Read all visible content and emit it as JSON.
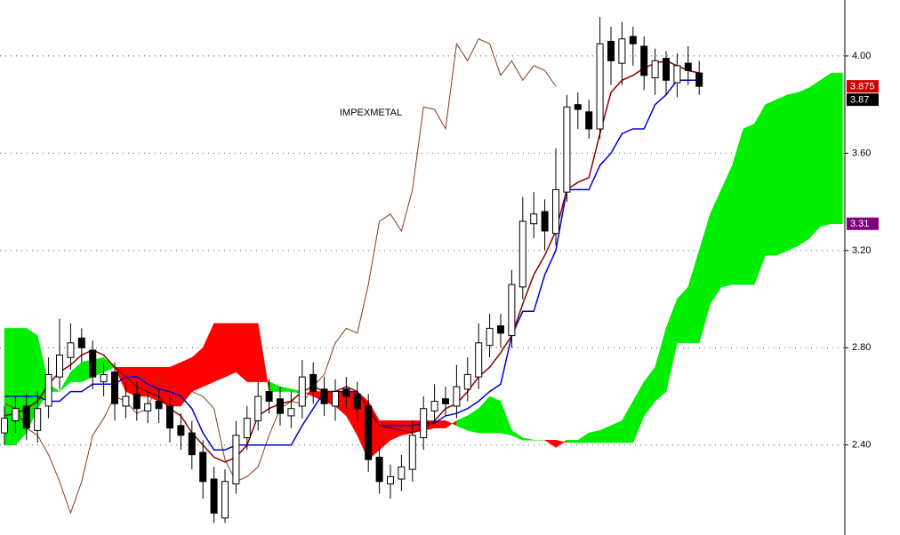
{
  "chart_data": {
    "type": "ichimoku",
    "title": "IMPEXMETAL",
    "ylim": [
      2.03,
      4.23
    ],
    "yticks": [
      {
        "value": 2.4,
        "label": "2.40"
      },
      {
        "value": 2.8,
        "label": "2.80"
      },
      {
        "value": 3.2,
        "label": "3.20"
      },
      {
        "value": 3.6,
        "label": "3.60"
      },
      {
        "value": 4.0,
        "label": "4.00"
      }
    ],
    "grid": true,
    "candles": {
      "open": [
        2.45,
        2.5,
        2.56,
        2.46,
        2.56,
        2.68,
        2.76,
        2.84,
        2.79,
        2.66,
        2.7,
        2.56,
        2.61,
        2.54,
        2.58,
        2.56,
        2.48,
        2.45,
        2.37,
        2.26,
        2.1,
        2.24,
        2.43,
        2.5,
        2.62,
        2.59,
        2.52,
        2.56,
        2.69,
        2.63,
        2.56,
        2.63,
        2.61,
        2.56,
        2.35,
        2.24,
        2.26,
        2.3,
        2.43,
        2.54,
        2.59,
        2.56,
        2.63,
        2.68,
        2.81,
        2.89,
        2.85,
        3.05,
        3.31,
        3.36,
        3.27,
        3.44,
        3.8,
        3.77,
        3.7,
        4.06,
        3.97,
        4.08,
        4.04,
        3.91,
        3.99,
        3.89,
        3.97,
        3.93
      ],
      "high": [
        2.56,
        2.6,
        2.61,
        2.62,
        2.76,
        2.92,
        2.9,
        2.88,
        2.83,
        2.74,
        2.74,
        2.66,
        2.66,
        2.62,
        2.63,
        2.6,
        2.53,
        2.5,
        2.42,
        2.31,
        2.3,
        2.5,
        2.56,
        2.66,
        2.67,
        2.64,
        2.62,
        2.75,
        2.74,
        2.68,
        2.67,
        2.68,
        2.66,
        2.61,
        2.4,
        2.32,
        2.36,
        2.5,
        2.6,
        2.65,
        2.64,
        2.73,
        2.76,
        2.9,
        2.94,
        2.94,
        3.12,
        3.42,
        3.44,
        3.41,
        3.62,
        3.84,
        3.85,
        3.82,
        4.16,
        4.12,
        4.14,
        4.12,
        4.08,
        4.03,
        4.02,
        4.01,
        4.04,
        3.98
      ],
      "low": [
        2.4,
        2.45,
        2.42,
        2.41,
        2.51,
        2.63,
        2.71,
        2.74,
        2.63,
        2.6,
        2.5,
        2.51,
        2.5,
        2.49,
        2.49,
        2.41,
        2.38,
        2.3,
        2.18,
        2.08,
        2.08,
        2.2,
        2.38,
        2.46,
        2.53,
        2.48,
        2.47,
        2.51,
        2.57,
        2.52,
        2.5,
        2.55,
        2.5,
        2.29,
        2.2,
        2.18,
        2.21,
        2.25,
        2.38,
        2.49,
        2.52,
        2.51,
        2.58,
        2.63,
        2.76,
        2.8,
        2.8,
        3.0,
        3.25,
        3.2,
        3.22,
        3.4,
        3.7,
        3.66,
        3.66,
        3.88,
        3.88,
        3.96,
        3.86,
        3.84,
        3.84,
        3.83,
        3.88,
        3.84
      ],
      "close": [
        2.51,
        2.55,
        2.47,
        2.55,
        2.69,
        2.77,
        2.82,
        2.8,
        2.68,
        2.69,
        2.57,
        2.6,
        2.55,
        2.57,
        2.55,
        2.47,
        2.44,
        2.36,
        2.25,
        2.12,
        2.25,
        2.44,
        2.51,
        2.6,
        2.58,
        2.53,
        2.55,
        2.68,
        2.62,
        2.57,
        2.62,
        2.6,
        2.55,
        2.34,
        2.25,
        2.27,
        2.31,
        2.44,
        2.55,
        2.58,
        2.57,
        2.64,
        2.69,
        2.82,
        2.88,
        2.86,
        3.06,
        3.32,
        3.35,
        3.28,
        3.45,
        3.79,
        3.78,
        3.7,
        4.05,
        3.98,
        4.07,
        4.05,
        3.92,
        3.98,
        3.9,
        3.96,
        3.94,
        3.875
      ],
      "up_color": "#ffffff",
      "down_color": "#000000"
    },
    "cloud": {
      "span_a": [
        2.88,
        2.88,
        2.88,
        2.85,
        2.65,
        2.62,
        2.7,
        2.74,
        2.75,
        2.76,
        2.72,
        2.62,
        2.6,
        2.6,
        2.58,
        2.56,
        2.56,
        2.62,
        2.64,
        2.66,
        2.68,
        2.7,
        2.66,
        2.66,
        2.66,
        2.64,
        2.63,
        2.62,
        2.6,
        2.58,
        2.56,
        2.52,
        2.44,
        2.34,
        2.38,
        2.42,
        2.44,
        2.45,
        2.46,
        2.47,
        2.47,
        2.5,
        2.52,
        2.55,
        2.6,
        2.58,
        2.46,
        2.43,
        2.42,
        2.42,
        2.39,
        2.42,
        2.42,
        2.45,
        2.46,
        2.48,
        2.5,
        2.58,
        2.66,
        2.72,
        2.88,
        3.0,
        3.05,
        3.2,
        3.35,
        3.45,
        3.55,
        3.7,
        3.72,
        3.8,
        3.82,
        3.84,
        3.85,
        3.87,
        3.9,
        3.93,
        3.93
      ],
      "span_b": [
        2.4,
        2.4,
        2.45,
        2.55,
        2.62,
        2.62,
        2.66,
        2.66,
        2.68,
        2.7,
        2.72,
        2.72,
        2.72,
        2.72,
        2.72,
        2.72,
        2.74,
        2.76,
        2.8,
        2.9,
        2.9,
        2.9,
        2.9,
        2.9,
        2.62,
        2.62,
        2.62,
        2.61,
        2.62,
        2.62,
        2.62,
        2.62,
        2.62,
        2.58,
        2.5,
        2.5,
        2.5,
        2.5,
        2.5,
        2.5,
        2.5,
        2.48,
        2.46,
        2.45,
        2.45,
        2.45,
        2.44,
        2.42,
        2.42,
        2.42,
        2.42,
        2.41,
        2.41,
        2.41,
        2.41,
        2.41,
        2.41,
        2.41,
        2.52,
        2.58,
        2.62,
        2.82,
        2.82,
        2.82,
        2.98,
        3.05,
        3.06,
        3.06,
        3.06,
        3.18,
        3.18,
        3.2,
        3.22,
        3.25,
        3.3,
        3.31,
        3.31
      ],
      "up_color": "#00ee00",
      "down_color": "#ff0000"
    },
    "lines": [
      {
        "color": "#8b3a1a",
        "width": 1,
        "values": [
          2.57,
          2.55,
          2.47,
          2.44,
          2.36,
          2.25,
          2.12,
          2.25,
          2.44,
          2.51,
          2.6,
          2.58,
          2.53,
          2.55,
          2.68,
          2.62,
          2.57,
          2.62,
          2.6,
          2.55,
          2.34,
          2.25,
          2.27,
          2.31,
          2.44,
          2.55,
          2.58,
          2.57,
          2.64,
          2.69,
          2.82,
          2.88,
          2.86,
          3.06,
          3.32,
          3.35,
          3.28,
          3.45,
          3.79,
          3.78,
          3.7,
          4.05,
          3.98,
          4.07,
          4.05,
          3.92,
          3.98,
          3.9,
          3.96,
          3.94,
          3.875,
          null,
          null,
          null,
          null,
          null,
          null,
          null,
          null,
          null,
          null,
          null,
          null,
          null
        ]
      },
      {
        "color": "#0000cc",
        "width": 1.5,
        "values": [
          2.6,
          2.6,
          2.6,
          2.6,
          2.58,
          2.58,
          2.62,
          2.62,
          2.65,
          2.65,
          2.65,
          2.68,
          2.68,
          2.65,
          2.63,
          2.62,
          2.6,
          2.55,
          2.45,
          2.38,
          2.38,
          2.4,
          2.4,
          2.4,
          2.4,
          2.4,
          2.4,
          2.48,
          2.55,
          2.62,
          2.62,
          2.62,
          2.62,
          2.55,
          2.48,
          2.48,
          2.48,
          2.48,
          2.49,
          2.49,
          2.52,
          2.53,
          2.55,
          2.58,
          2.62,
          2.65,
          2.85,
          2.95,
          2.95,
          3.1,
          3.2,
          3.45,
          3.45,
          3.45,
          3.55,
          3.6,
          3.68,
          3.7,
          3.7,
          3.8,
          3.84,
          3.9,
          3.9,
          3.9
        ]
      },
      {
        "color": "#8b0000",
        "width": 1.5,
        "values": [
          2.52,
          2.53,
          2.55,
          2.58,
          2.65,
          2.7,
          2.73,
          2.77,
          2.79,
          2.77,
          2.72,
          2.68,
          2.64,
          2.62,
          2.6,
          2.55,
          2.52,
          2.45,
          2.4,
          2.35,
          2.33,
          2.35,
          2.4,
          2.52,
          2.55,
          2.57,
          2.58,
          2.62,
          2.64,
          2.62,
          2.62,
          2.64,
          2.62,
          2.55,
          2.48,
          2.47,
          2.46,
          2.45,
          2.47,
          2.5,
          2.55,
          2.57,
          2.62,
          2.68,
          2.72,
          2.78,
          2.85,
          2.98,
          3.1,
          3.18,
          3.28,
          3.45,
          3.48,
          3.5,
          3.68,
          3.85,
          3.9,
          3.92,
          3.95,
          3.97,
          3.98,
          3.96,
          3.94,
          3.93
        ]
      }
    ],
    "price_labels": [
      {
        "value": 3.875,
        "label": "3.875",
        "color": "#cc0000"
      },
      {
        "value": 3.87,
        "label": "3.87",
        "color": "#000000"
      },
      {
        "value": 3.31,
        "label": "3.31",
        "color": "#800080"
      }
    ]
  }
}
